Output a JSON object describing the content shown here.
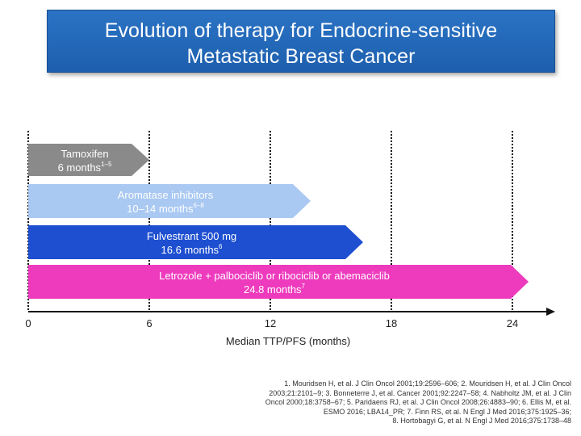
{
  "title": {
    "line1": "Evolution of therapy for Endocrine-sensitive",
    "line2": "Metastatic Breast Cancer"
  },
  "chart_data": {
    "type": "bar",
    "orientation": "horizontal",
    "xlabel": "Median TTP/PFS (months)",
    "xlim": [
      0,
      26
    ],
    "xticks": [
      0,
      6,
      12,
      18,
      24
    ],
    "gridlines": "dotted vertical at 0, 6, 12, 18, 24",
    "bars": [
      {
        "name": "Tamoxifen",
        "value_label": "6 months",
        "ref": "1–5",
        "value": 6,
        "color": "#8a8a8a"
      },
      {
        "name": "Aromatase inhibitors",
        "value_label": "10–14 months",
        "ref": "6–8",
        "value": 14,
        "color": "#a9c8f2"
      },
      {
        "name": "Fulvestrant 500 mg",
        "value_label": "16.6 months",
        "ref": "6",
        "value": 16.6,
        "color": "#1e4fd0"
      },
      {
        "name": "Letrozole + palbociclib or ribociclib or abemaciclib",
        "value_label": "24.8 months",
        "ref": "7",
        "value": 24.8,
        "color": "#ee3bbd"
      }
    ]
  },
  "references": [
    "1. Mouridsen H, et al. J Clin Oncol 2001;19:2596–606; 2. Mouridsen H, et al. J Clin Oncol",
    "2003;21:2101–9; 3. Bonneterre J, et al. Cancer 2001;92:2247–58; 4. Nabholtz JM, et al. J Clin",
    "Oncol 2000;18:3758–67; 5. Paridaens RJ, et al. J Clin Oncol 2008;26:4883–90; 6. Ellis M, et al.",
    "ESMO 2016; LBA14_PR; 7. Finn RS, et al. N Engl J Med 2016;375:1925–36;",
    "8. Hortobagyi G, et al. N Engl J Med 2016;375:1738–48"
  ]
}
